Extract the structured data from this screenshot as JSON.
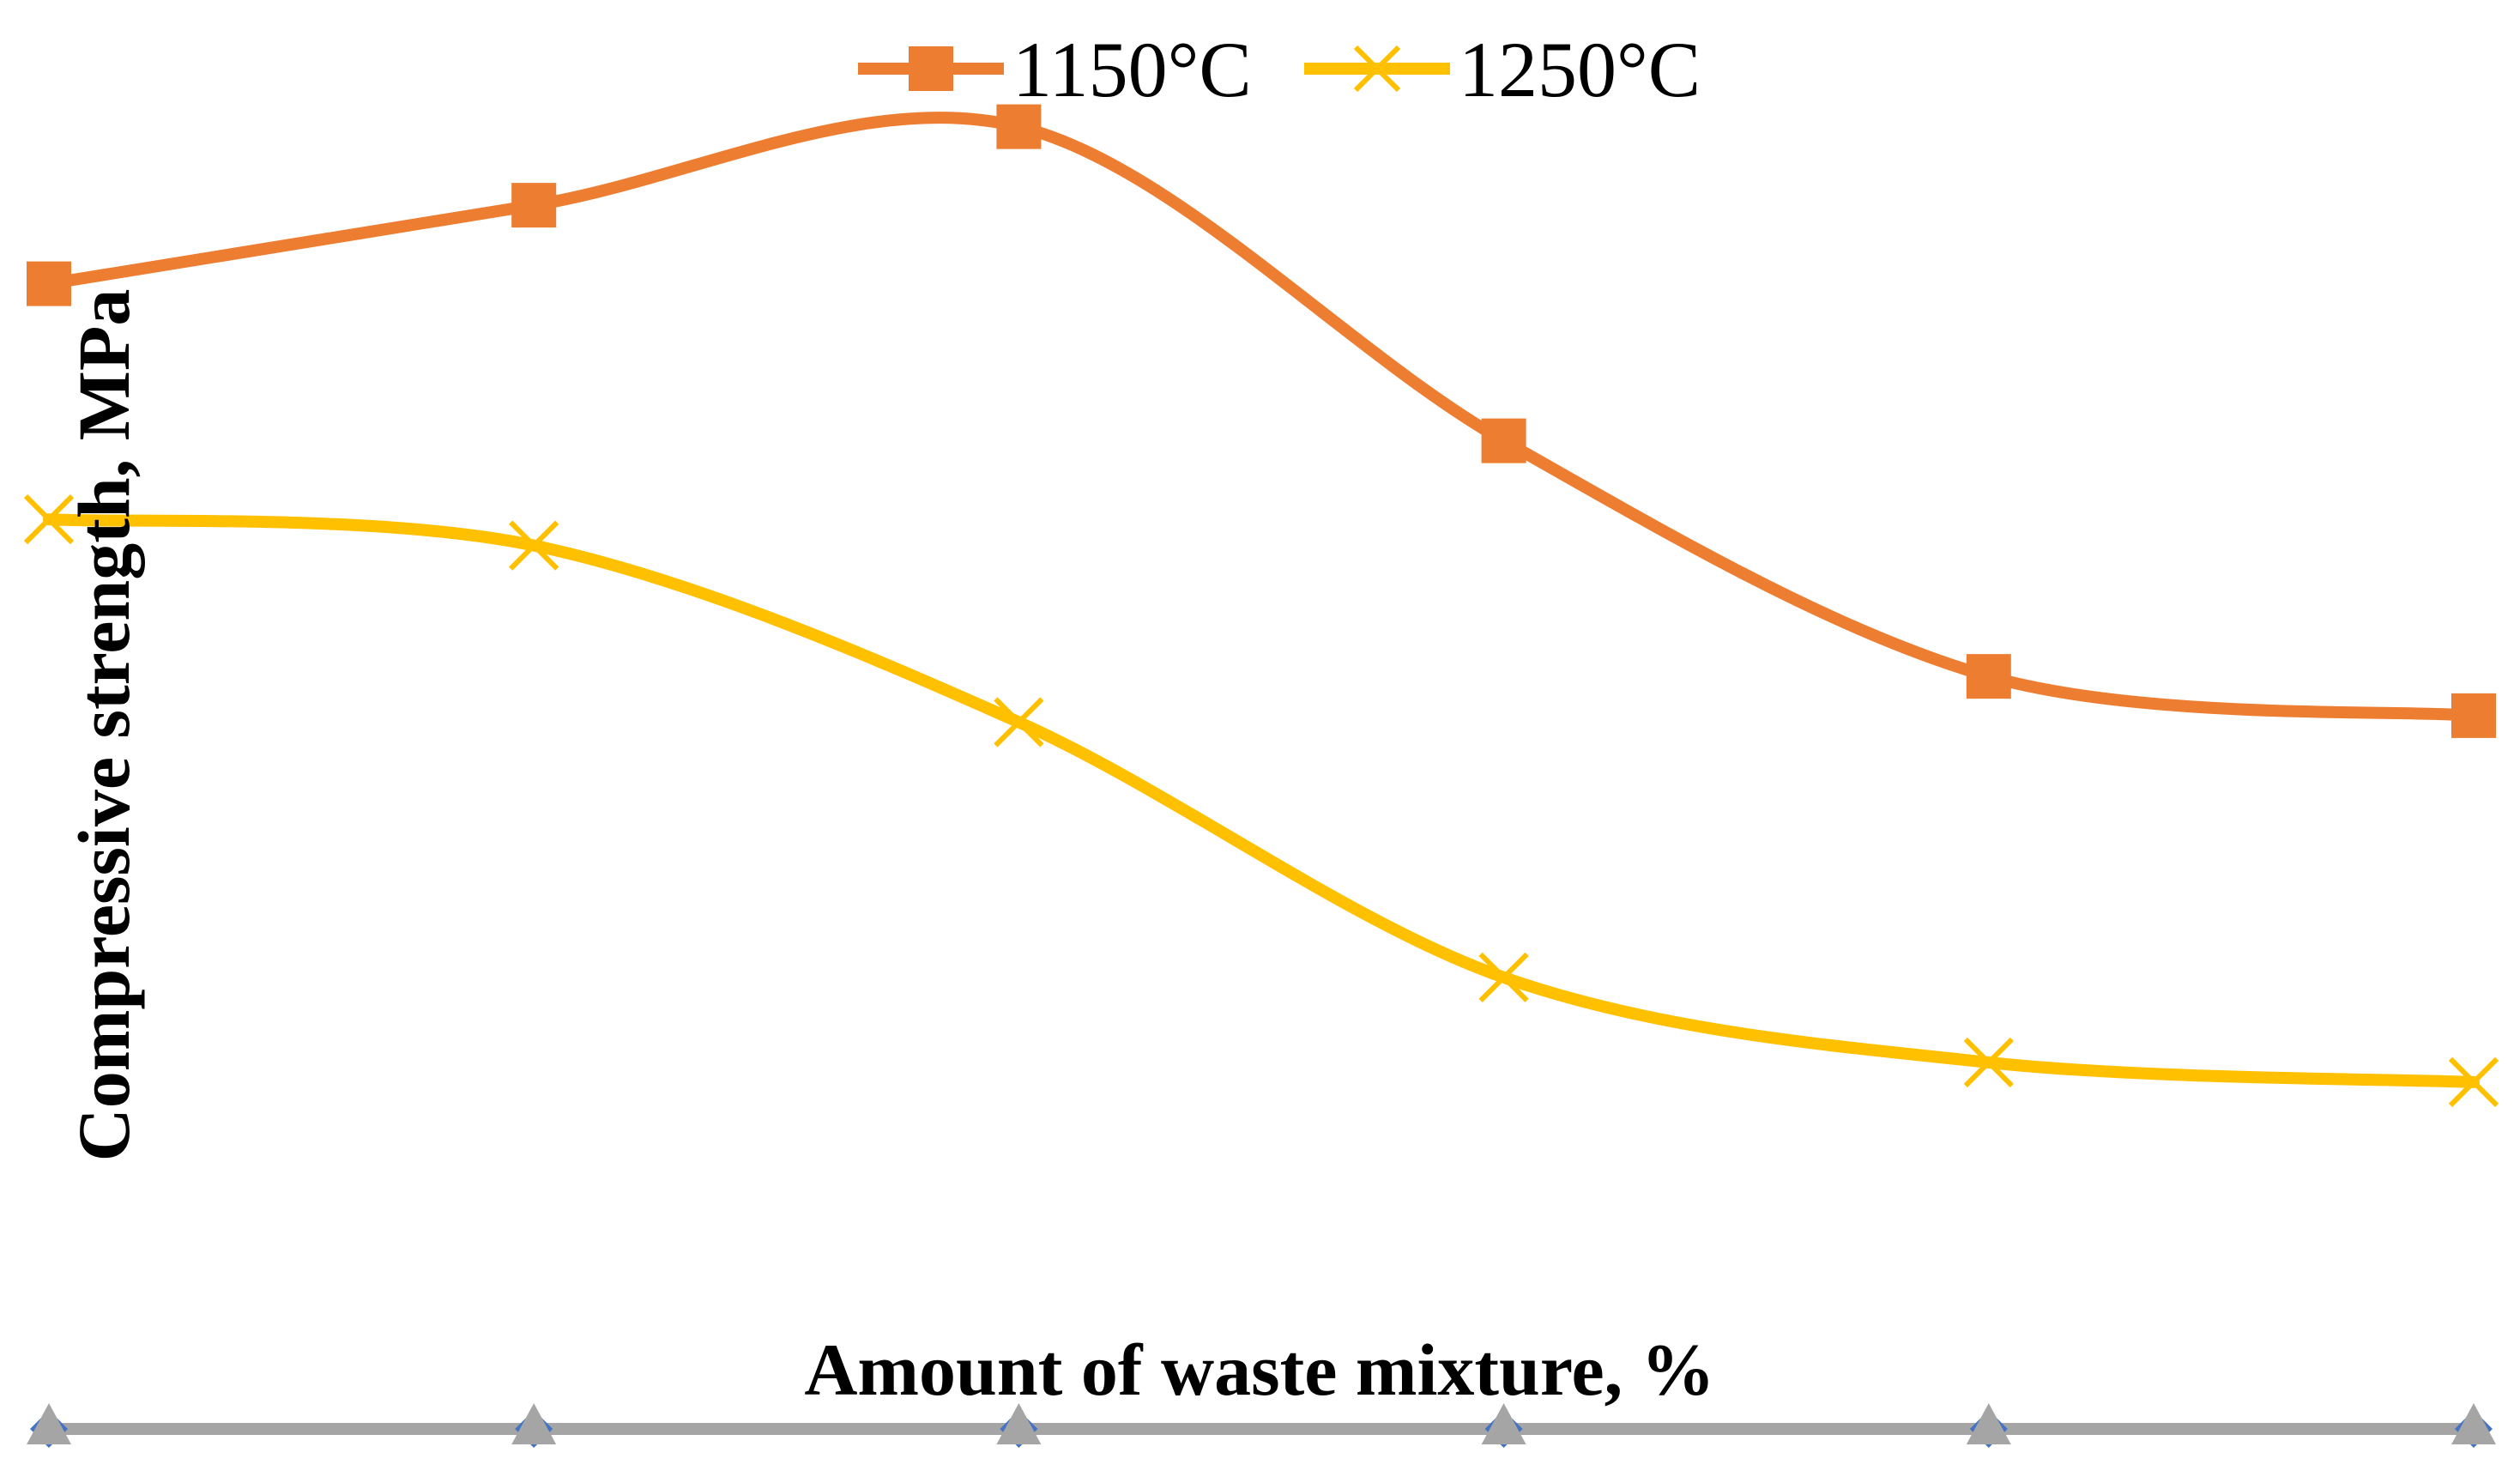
{
  "chart_data": {
    "type": "line",
    "title": "",
    "xlabel": "Amount of waste mixture, %",
    "ylabel": "Compressive strength, MPa",
    "x_count": 6,
    "ylim": [
      0,
      100
    ],
    "grid": false,
    "legend_position": "top-center",
    "series": [
      {
        "name": "1150°C",
        "color": "#ED7D31",
        "marker": "square",
        "values": [
          87.5,
          93.5,
          99.5,
          75.5,
          57.5,
          54.5
        ]
      },
      {
        "name": "1250°C",
        "color": "#FFC000",
        "marker": "x",
        "values": [
          69.5,
          67.5,
          54,
          34.5,
          28,
          26.5
        ]
      }
    ],
    "baseline_series": {
      "color": "#A5A5A5",
      "marker": "triangle",
      "values": [
        0,
        0,
        0,
        0,
        0,
        0
      ]
    }
  }
}
